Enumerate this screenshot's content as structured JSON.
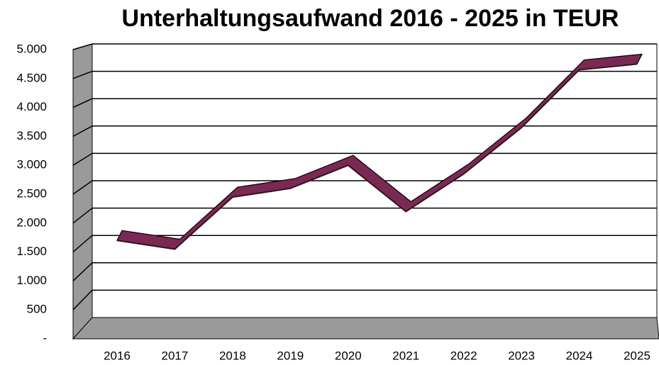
{
  "chart_data": {
    "type": "line",
    "title": "Unterhaltungsaufwand 2016 - 2025 in TEUR",
    "categories": [
      "2016",
      "2017",
      "2018",
      "2019",
      "2020",
      "2021",
      "2022",
      "2023",
      "2024",
      "2025"
    ],
    "series": [
      {
        "name": "Unterhaltungsaufwand",
        "color": "#7a2a52",
        "values": [
          1700,
          1550,
          2450,
          2600,
          3000,
          2200,
          2850,
          3650,
          4650,
          4750
        ]
      }
    ],
    "ylim": [
      0,
      5000
    ],
    "yticks": [
      {
        "value": 0,
        "label": "-"
      },
      500,
      {
        "value": 1000,
        "label": "1.000"
      },
      {
        "value": 1500,
        "label": "1.500"
      },
      {
        "value": 2000,
        "label": "2.000"
      },
      {
        "value": 2500,
        "label": "2.500"
      },
      {
        "value": 3000,
        "label": "3.000"
      },
      {
        "value": 3500,
        "label": "3.500"
      },
      {
        "value": 4000,
        "label": "4.000"
      },
      {
        "value": 4500,
        "label": "4.500"
      },
      {
        "value": 5000,
        "label": "5.000"
      }
    ],
    "grid": true
  }
}
